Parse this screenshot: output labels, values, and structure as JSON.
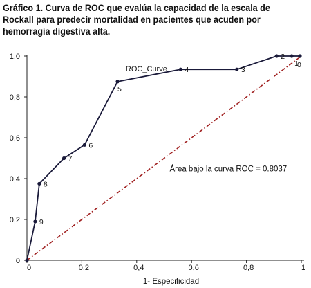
{
  "title": "Gráfico 1. Curva de ROC que evalúa la capacidad de la escala de Rockall para predecir mortalidad en pacientes que acuden por hemorragia digestiva alta.",
  "chart_data": {
    "type": "line",
    "title": "Gráfico 1. Curva de ROC que evalúa la capacidad de la escala de Rockall para predecir mortalidad en pacientes que acuden por hemorragia digestiva alta.",
    "xlabel": "1- Especificidad",
    "ylabel": "",
    "xlim": [
      0,
      1
    ],
    "ylim": [
      0,
      1
    ],
    "x_ticks": [
      "0",
      "0,2",
      "0,4",
      "0,6",
      "0,8",
      "1"
    ],
    "y_ticks": [
      "0",
      "0,2",
      "0,4",
      "0,6",
      "0,8",
      "1.0"
    ],
    "grid": false,
    "series": [
      {
        "name": "ROC_Curve",
        "color": "#1a1a3a",
        "points": [
          {
            "x": 0.0,
            "y": 0.0,
            "label": ""
          },
          {
            "x": 0.03,
            "y": 0.19,
            "label": "9"
          },
          {
            "x": 0.045,
            "y": 0.375,
            "label": "8"
          },
          {
            "x": 0.135,
            "y": 0.5,
            "label": "7"
          },
          {
            "x": 0.21,
            "y": 0.565,
            "label": "6"
          },
          {
            "x": 0.33,
            "y": 0.875,
            "label": "5"
          },
          {
            "x": 0.56,
            "y": 0.935,
            "label": "4"
          },
          {
            "x": 0.765,
            "y": 0.935,
            "label": "3"
          },
          {
            "x": 0.91,
            "y": 1.0,
            "label": "2"
          },
          {
            "x": 0.965,
            "y": 1.0,
            "label": "1"
          },
          {
            "x": 0.995,
            "y": 1.0,
            "label": "0"
          }
        ]
      }
    ],
    "reference_line": {
      "from": [
        0,
        0
      ],
      "to": [
        1,
        1
      ],
      "color": "#a02020",
      "style": "dash-dot"
    },
    "annotation": "Área bajo la curva ROC = 0.8037"
  }
}
